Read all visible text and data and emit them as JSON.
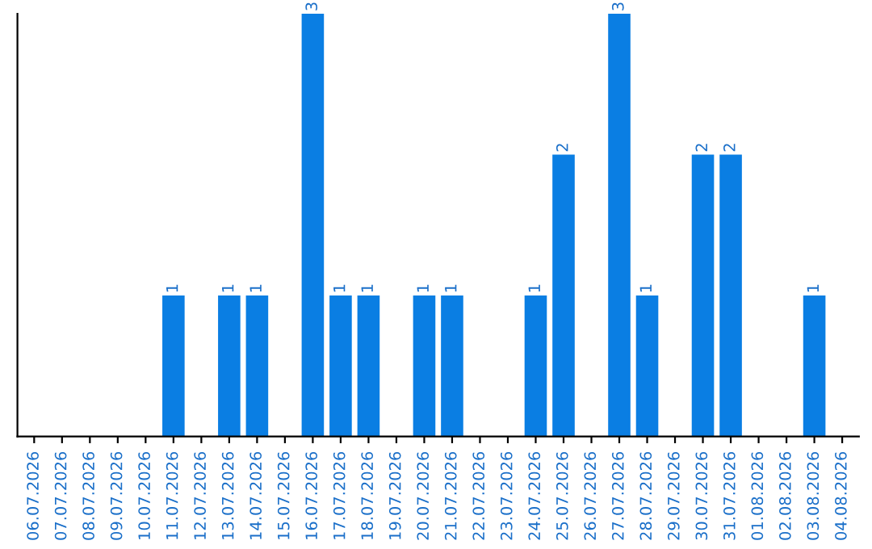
{
  "chart_data": {
    "type": "bar",
    "categories": [
      "06.07.2026",
      "07.07.2026",
      "08.07.2026",
      "09.07.2026",
      "10.07.2026",
      "11.07.2026",
      "12.07.2026",
      "13.07.2026",
      "14.07.2026",
      "15.07.2026",
      "16.07.2026",
      "17.07.2026",
      "18.07.2026",
      "19.07.2026",
      "20.07.2026",
      "21.07.2026",
      "22.07.2026",
      "23.07.2026",
      "24.07.2026",
      "25.07.2026",
      "26.07.2026",
      "27.07.2026",
      "28.07.2026",
      "29.07.2026",
      "30.07.2026",
      "31.07.2026",
      "01.08.2026",
      "02.08.2026",
      "03.08.2026",
      "04.08.2026"
    ],
    "values": [
      0,
      0,
      0,
      0,
      0,
      1,
      0,
      1,
      1,
      0,
      3,
      1,
      1,
      0,
      1,
      1,
      0,
      0,
      1,
      2,
      0,
      3,
      1,
      0,
      2,
      2,
      0,
      0,
      1,
      0
    ],
    "value_labels": [
      null,
      null,
      null,
      null,
      null,
      "1",
      null,
      "1",
      "1",
      null,
      "3",
      "1",
      "1",
      null,
      "1",
      "1",
      null,
      null,
      "1",
      "2",
      null,
      "3",
      "1",
      null,
      "2",
      "2",
      null,
      null,
      "1",
      null
    ],
    "color": "#0a7ee3",
    "grid": false,
    "legend": false
  }
}
